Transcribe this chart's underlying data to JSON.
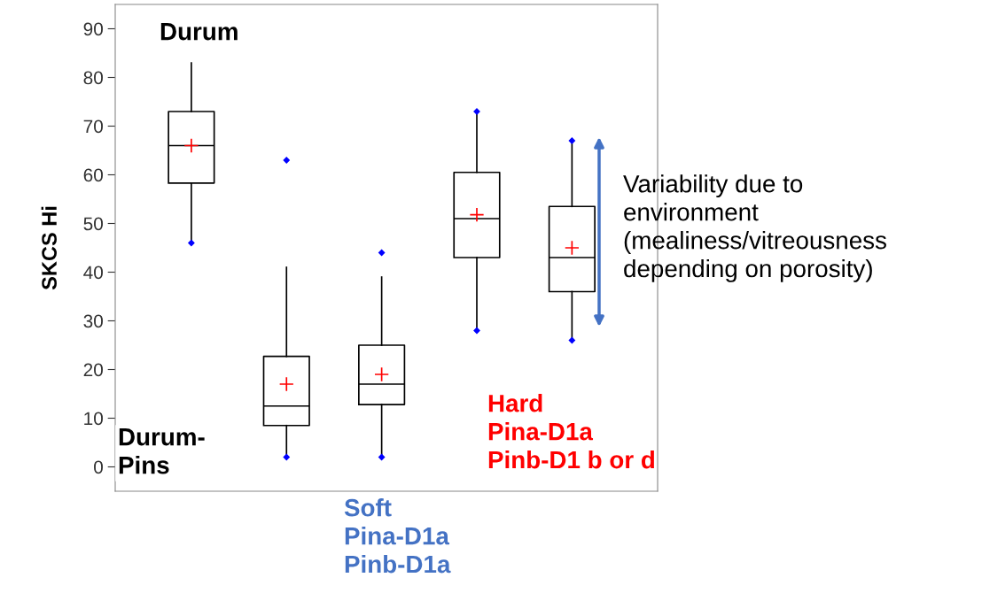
{
  "chart_data": {
    "type": "box",
    "ylabel": "SKCS Hi",
    "categories": [
      null,
      null,
      null,
      null,
      null
    ],
    "boxes": [
      {
        "low": 46,
        "q1": 58.3,
        "median": 66,
        "q3": 73,
        "high": 83,
        "mean": 66,
        "outliers": [
          46
        ]
      },
      {
        "low": 2,
        "q1": 8.5,
        "median": 12.5,
        "q3": 22.7,
        "high": 41,
        "mean": 17,
        "outliers": [
          63,
          2
        ]
      },
      {
        "low": 2,
        "q1": 12.8,
        "median": 17,
        "q3": 25,
        "high": 39,
        "mean": 19,
        "outliers": [
          44,
          2
        ]
      },
      {
        "low": 28,
        "q1": 43,
        "median": 51,
        "q3": 60.5,
        "high": 73,
        "mean": 51.8,
        "outliers": [
          73,
          28
        ]
      },
      {
        "low": 26,
        "q1": 36,
        "median": 43,
        "q3": 53.5,
        "high": 67,
        "mean": 45,
        "outliers": [
          67,
          26
        ]
      }
    ],
    "ylim": [
      -5,
      95
    ],
    "yticks": [
      0,
      10,
      20,
      30,
      40,
      50,
      60,
      70,
      80,
      90
    ],
    "grid": false,
    "annotations": [
      "Durum",
      "Durum-\nPins",
      "Soft\nPina-D1a\nPinb-D1a",
      "Hard\nPina-D1a\nPinb-D1 b or d",
      "Variability due to\nenvironment\n(mealiness/vitreousness\ndepending on porosity)"
    ]
  }
}
